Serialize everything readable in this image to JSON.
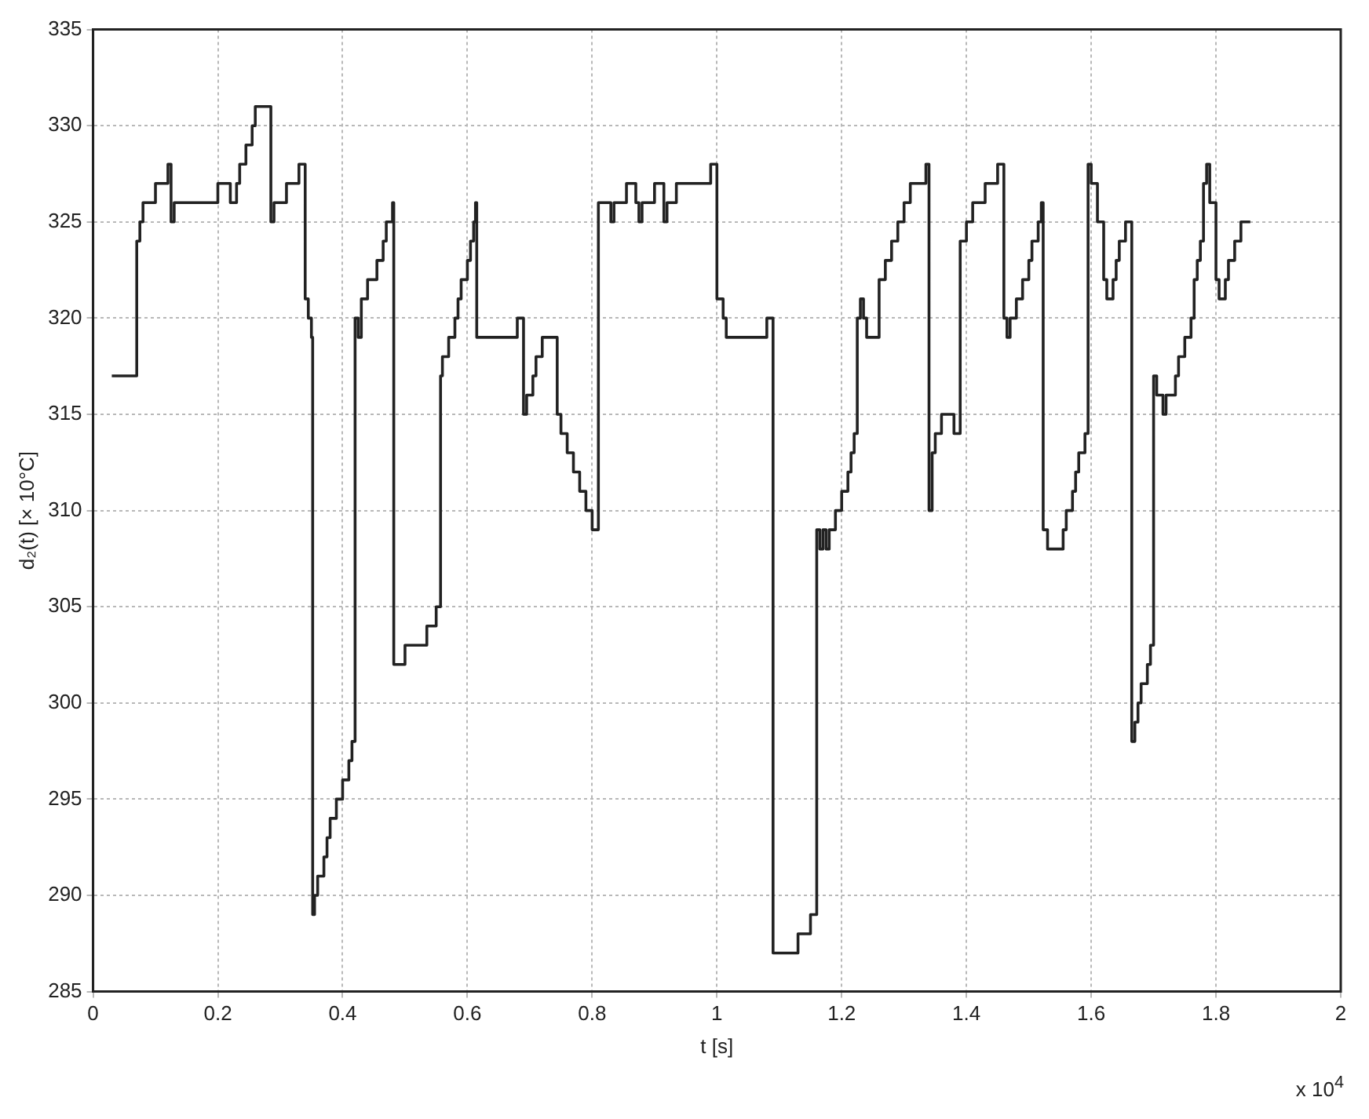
{
  "chart_data": {
    "type": "step",
    "xlabel": "t [s]",
    "ylabel": "d₂(t) [× 10°C]",
    "annotations": [
      "x 10$^{4}$"
    ],
    "xlim": [
      0,
      2
    ],
    "xticks": [
      0,
      0.2,
      0.4,
      0.6,
      0.8,
      1,
      1.2,
      1.4,
      1.6,
      1.8,
      2
    ],
    "ylim": [
      285,
      335
    ],
    "yticks": [
      285,
      290,
      295,
      300,
      305,
      310,
      315,
      320,
      325,
      330,
      335
    ],
    "grid": true,
    "legend": false,
    "marker": "none",
    "line_style": "solid",
    "series": [
      {
        "color": "#222222",
        "x": [
          0.03,
          0.07,
          0.075,
          0.08,
          0.1,
          0.12,
          0.125,
          0.13,
          0.2,
          0.22,
          0.23,
          0.235,
          0.245,
          0.255,
          0.26,
          0.285,
          0.29,
          0.31,
          0.33,
          0.34,
          0.345,
          0.35,
          0.352,
          0.355,
          0.36,
          0.37,
          0.375,
          0.38,
          0.39,
          0.4,
          0.41,
          0.415,
          0.42,
          0.425,
          0.43,
          0.44,
          0.455,
          0.465,
          0.47,
          0.48,
          0.482,
          0.5,
          0.535,
          0.55,
          0.557,
          0.56,
          0.57,
          0.58,
          0.585,
          0.59,
          0.6,
          0.605,
          0.61,
          0.613,
          0.615,
          0.68,
          0.69,
          0.695,
          0.705,
          0.71,
          0.72,
          0.744,
          0.75,
          0.76,
          0.77,
          0.78,
          0.79,
          0.8,
          0.81,
          0.83,
          0.835,
          0.855,
          0.87,
          0.875,
          0.88,
          0.9,
          0.915,
          0.92,
          0.935,
          0.99,
          1.0,
          1.01,
          1.015,
          1.08,
          1.09,
          1.13,
          1.15,
          1.16,
          1.165,
          1.17,
          1.175,
          1.18,
          1.19,
          1.2,
          1.21,
          1.215,
          1.22,
          1.225,
          1.23,
          1.235,
          1.24,
          1.26,
          1.27,
          1.28,
          1.29,
          1.3,
          1.31,
          1.335,
          1.34,
          1.345,
          1.35,
          1.36,
          1.38,
          1.39,
          1.4,
          1.41,
          1.43,
          1.45,
          1.46,
          1.465,
          1.47,
          1.48,
          1.49,
          1.5,
          1.505,
          1.515,
          1.52,
          1.523,
          1.53,
          1.555,
          1.56,
          1.57,
          1.575,
          1.58,
          1.59,
          1.595,
          1.6,
          1.61,
          1.62,
          1.625,
          1.635,
          1.64,
          1.645,
          1.655,
          1.665,
          1.67,
          1.675,
          1.68,
          1.69,
          1.695,
          1.7,
          1.705,
          1.715,
          1.72,
          1.735,
          1.74,
          1.75,
          1.76,
          1.765,
          1.77,
          1.775,
          1.78,
          1.785,
          1.79,
          1.8,
          1.805,
          1.815,
          1.82,
          1.83,
          1.84,
          1.855
        ],
        "values": [
          317,
          324,
          325,
          326,
          327,
          328,
          325,
          326,
          327,
          326,
          327,
          328,
          329,
          330,
          331,
          325,
          326,
          327,
          328,
          321,
          320,
          319,
          289,
          290,
          291,
          292,
          293,
          294,
          295,
          296,
          297,
          298,
          320,
          319,
          321,
          322,
          323,
          324,
          325,
          326,
          302,
          303,
          304,
          305,
          317,
          318,
          319,
          320,
          321,
          322,
          323,
          324,
          325,
          326,
          319,
          320,
          315,
          316,
          317,
          318,
          319,
          315,
          314,
          313,
          312,
          311,
          310,
          309,
          326,
          325,
          326,
          327,
          326,
          325,
          326,
          327,
          325,
          326,
          327,
          328,
          321,
          320,
          319,
          320,
          287,
          288,
          289,
          309,
          308,
          309,
          308,
          309,
          310,
          311,
          312,
          313,
          314,
          320,
          321,
          320,
          319,
          322,
          323,
          324,
          325,
          326,
          327,
          328,
          310,
          313,
          314,
          315,
          314,
          324,
          325,
          326,
          327,
          328,
          320,
          319,
          320,
          321,
          322,
          323,
          324,
          325,
          326,
          309,
          308,
          309,
          310,
          311,
          312,
          313,
          314,
          328,
          327,
          325,
          322,
          321,
          322,
          323,
          324,
          325,
          298,
          299,
          300,
          301,
          302,
          303,
          317,
          316,
          315,
          316,
          317,
          318,
          319,
          320,
          322,
          323,
          324,
          327,
          328,
          326,
          322,
          321,
          322,
          323,
          324,
          325,
          325
        ]
      }
    ]
  }
}
